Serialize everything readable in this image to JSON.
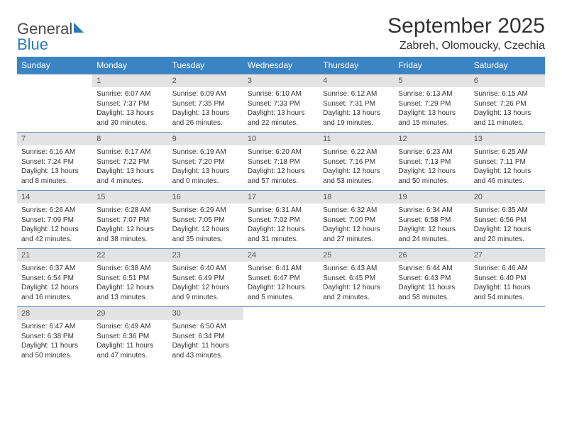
{
  "logo": {
    "word1": "General",
    "word2": "Blue"
  },
  "colors": {
    "header_bg": "#3b84c4",
    "daynum_bg": "#e3e3e3",
    "cell_border": "#6b95b8",
    "logo_blue": "#2a7ab8",
    "text": "#333333"
  },
  "title": "September 2025",
  "location": "Zabreh, Olomoucky, Czechia",
  "weekdays": [
    "Sunday",
    "Monday",
    "Tuesday",
    "Wednesday",
    "Thursday",
    "Friday",
    "Saturday"
  ],
  "weeks": [
    [
      {
        "day": "",
        "lines": [
          "",
          "",
          "",
          ""
        ]
      },
      {
        "day": "1",
        "lines": [
          "Sunrise: 6:07 AM",
          "Sunset: 7:37 PM",
          "Daylight: 13 hours",
          "and 30 minutes."
        ]
      },
      {
        "day": "2",
        "lines": [
          "Sunrise: 6:09 AM",
          "Sunset: 7:35 PM",
          "Daylight: 13 hours",
          "and 26 minutes."
        ]
      },
      {
        "day": "3",
        "lines": [
          "Sunrise: 6:10 AM",
          "Sunset: 7:33 PM",
          "Daylight: 13 hours",
          "and 22 minutes."
        ]
      },
      {
        "day": "4",
        "lines": [
          "Sunrise: 6:12 AM",
          "Sunset: 7:31 PM",
          "Daylight: 13 hours",
          "and 19 minutes."
        ]
      },
      {
        "day": "5",
        "lines": [
          "Sunrise: 6:13 AM",
          "Sunset: 7:29 PM",
          "Daylight: 13 hours",
          "and 15 minutes."
        ]
      },
      {
        "day": "6",
        "lines": [
          "Sunrise: 6:15 AM",
          "Sunset: 7:26 PM",
          "Daylight: 13 hours",
          "and 11 minutes."
        ]
      }
    ],
    [
      {
        "day": "7",
        "lines": [
          "Sunrise: 6:16 AM",
          "Sunset: 7:24 PM",
          "Daylight: 13 hours",
          "and 8 minutes."
        ]
      },
      {
        "day": "8",
        "lines": [
          "Sunrise: 6:17 AM",
          "Sunset: 7:22 PM",
          "Daylight: 13 hours",
          "and 4 minutes."
        ]
      },
      {
        "day": "9",
        "lines": [
          "Sunrise: 6:19 AM",
          "Sunset: 7:20 PM",
          "Daylight: 13 hours",
          "and 0 minutes."
        ]
      },
      {
        "day": "10",
        "lines": [
          "Sunrise: 6:20 AM",
          "Sunset: 7:18 PM",
          "Daylight: 12 hours",
          "and 57 minutes."
        ]
      },
      {
        "day": "11",
        "lines": [
          "Sunrise: 6:22 AM",
          "Sunset: 7:16 PM",
          "Daylight: 12 hours",
          "and 53 minutes."
        ]
      },
      {
        "day": "12",
        "lines": [
          "Sunrise: 6:23 AM",
          "Sunset: 7:13 PM",
          "Daylight: 12 hours",
          "and 50 minutes."
        ]
      },
      {
        "day": "13",
        "lines": [
          "Sunrise: 6:25 AM",
          "Sunset: 7:11 PM",
          "Daylight: 12 hours",
          "and 46 minutes."
        ]
      }
    ],
    [
      {
        "day": "14",
        "lines": [
          "Sunrise: 6:26 AM",
          "Sunset: 7:09 PM",
          "Daylight: 12 hours",
          "and 42 minutes."
        ]
      },
      {
        "day": "15",
        "lines": [
          "Sunrise: 6:28 AM",
          "Sunset: 7:07 PM",
          "Daylight: 12 hours",
          "and 38 minutes."
        ]
      },
      {
        "day": "16",
        "lines": [
          "Sunrise: 6:29 AM",
          "Sunset: 7:05 PM",
          "Daylight: 12 hours",
          "and 35 minutes."
        ]
      },
      {
        "day": "17",
        "lines": [
          "Sunrise: 6:31 AM",
          "Sunset: 7:02 PM",
          "Daylight: 12 hours",
          "and 31 minutes."
        ]
      },
      {
        "day": "18",
        "lines": [
          "Sunrise: 6:32 AM",
          "Sunset: 7:00 PM",
          "Daylight: 12 hours",
          "and 27 minutes."
        ]
      },
      {
        "day": "19",
        "lines": [
          "Sunrise: 6:34 AM",
          "Sunset: 6:58 PM",
          "Daylight: 12 hours",
          "and 24 minutes."
        ]
      },
      {
        "day": "20",
        "lines": [
          "Sunrise: 6:35 AM",
          "Sunset: 6:56 PM",
          "Daylight: 12 hours",
          "and 20 minutes."
        ]
      }
    ],
    [
      {
        "day": "21",
        "lines": [
          "Sunrise: 6:37 AM",
          "Sunset: 6:54 PM",
          "Daylight: 12 hours",
          "and 16 minutes."
        ]
      },
      {
        "day": "22",
        "lines": [
          "Sunrise: 6:38 AM",
          "Sunset: 6:51 PM",
          "Daylight: 12 hours",
          "and 13 minutes."
        ]
      },
      {
        "day": "23",
        "lines": [
          "Sunrise: 6:40 AM",
          "Sunset: 6:49 PM",
          "Daylight: 12 hours",
          "and 9 minutes."
        ]
      },
      {
        "day": "24",
        "lines": [
          "Sunrise: 6:41 AM",
          "Sunset: 6:47 PM",
          "Daylight: 12 hours",
          "and 5 minutes."
        ]
      },
      {
        "day": "25",
        "lines": [
          "Sunrise: 6:43 AM",
          "Sunset: 6:45 PM",
          "Daylight: 12 hours",
          "and 2 minutes."
        ]
      },
      {
        "day": "26",
        "lines": [
          "Sunrise: 6:44 AM",
          "Sunset: 6:43 PM",
          "Daylight: 11 hours",
          "and 58 minutes."
        ]
      },
      {
        "day": "27",
        "lines": [
          "Sunrise: 6:46 AM",
          "Sunset: 6:40 PM",
          "Daylight: 11 hours",
          "and 54 minutes."
        ]
      }
    ],
    [
      {
        "day": "28",
        "lines": [
          "Sunrise: 6:47 AM",
          "Sunset: 6:38 PM",
          "Daylight: 11 hours",
          "and 50 minutes."
        ]
      },
      {
        "day": "29",
        "lines": [
          "Sunrise: 6:49 AM",
          "Sunset: 6:36 PM",
          "Daylight: 11 hours",
          "and 47 minutes."
        ]
      },
      {
        "day": "30",
        "lines": [
          "Sunrise: 6:50 AM",
          "Sunset: 6:34 PM",
          "Daylight: 11 hours",
          "and 43 minutes."
        ]
      },
      {
        "day": "",
        "lines": [
          "",
          "",
          "",
          ""
        ]
      },
      {
        "day": "",
        "lines": [
          "",
          "",
          "",
          ""
        ]
      },
      {
        "day": "",
        "lines": [
          "",
          "",
          "",
          ""
        ]
      },
      {
        "day": "",
        "lines": [
          "",
          "",
          "",
          ""
        ]
      }
    ]
  ]
}
